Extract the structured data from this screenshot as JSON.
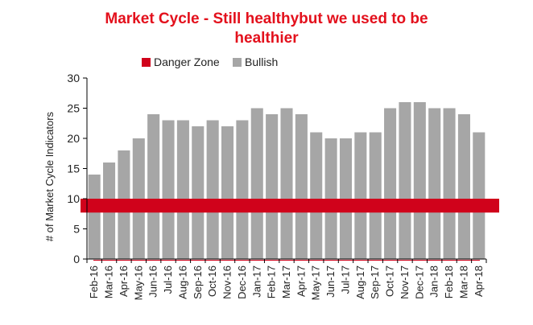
{
  "chart_data": {
    "type": "bar",
    "title_line1": "Market Cycle - Still healthybut we used to be",
    "title_line2": "healthier",
    "ylabel": "# of Market Cycle Indicators",
    "xlabel": "",
    "ylim": [
      0,
      30
    ],
    "yticks": [
      0,
      5,
      10,
      15,
      20,
      25,
      30
    ],
    "grid": false,
    "legend_position": "top",
    "categories": [
      "Feb-16",
      "Mar-16",
      "Apr-16",
      "May-16",
      "Jun-16",
      "Jul-16",
      "Aug-16",
      "Sep-16",
      "Oct-16",
      "Nov-16",
      "Dec-16",
      "Jan-17",
      "Feb-17",
      "Mar-17",
      "Apr-17",
      "May-17",
      "Jun-17",
      "Jul-17",
      "Aug-17",
      "Sep-17",
      "Oct-17",
      "Nov-17",
      "Dec-17",
      "Jan-18",
      "Feb-18",
      "Mar-18",
      "Apr-18"
    ],
    "series": [
      {
        "name": "Danger Zone",
        "type": "band",
        "color": "#d0021b",
        "range": [
          7.7,
          10
        ]
      },
      {
        "name": "Bullish",
        "type": "bar",
        "color": "#a6a6a6",
        "values": [
          14,
          16,
          18,
          20,
          24,
          23,
          23,
          22,
          23,
          22,
          23,
          25,
          24,
          25,
          24,
          21,
          20,
          20,
          21,
          21,
          25,
          26,
          26,
          25,
          25,
          24,
          21
        ]
      }
    ],
    "colors": {
      "title": "#e3101c",
      "danger": "#d0021b",
      "bullish": "#a6a6a6"
    }
  }
}
